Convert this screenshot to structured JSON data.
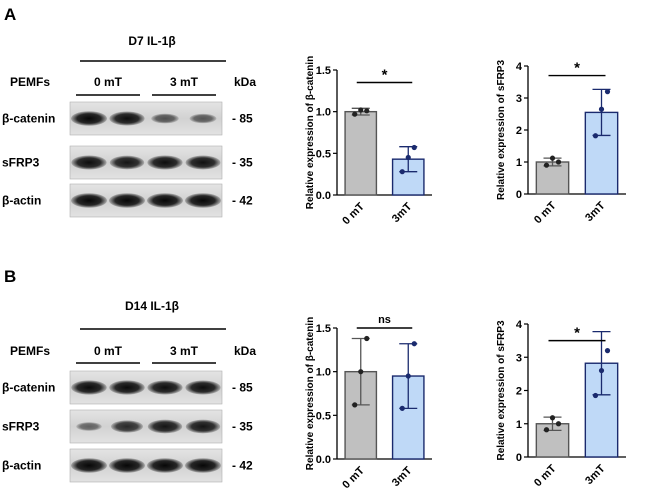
{
  "panels": [
    {
      "label": "A",
      "condition": "D7 IL-1β",
      "treatment_label": "PEMFs",
      "groups": [
        "0 mT",
        "3 mT"
      ],
      "kda_label": "kDa",
      "blots": [
        {
          "protein": "β-catenin",
          "kda": "- 85",
          "intensities": [
            0.95,
            0.9,
            0.42,
            0.38
          ]
        },
        {
          "protein": "sFRP3",
          "kda": "- 35",
          "intensities": [
            0.9,
            0.85,
            0.9,
            0.88
          ]
        },
        {
          "protein": "β-actin",
          "kda": "- 42",
          "intensities": [
            0.95,
            0.95,
            0.95,
            0.95
          ]
        }
      ]
    },
    {
      "label": "B",
      "condition": "D14 IL-1β",
      "treatment_label": "PEMFs",
      "groups": [
        "0 mT",
        "3 mT"
      ],
      "kda_label": "kDa",
      "blots": [
        {
          "protein": "β-catenin",
          "kda": "- 85",
          "intensities": [
            0.92,
            0.92,
            0.9,
            0.9
          ]
        },
        {
          "protein": "sFRP3",
          "kda": "- 35",
          "intensities": [
            0.3,
            0.7,
            0.85,
            0.85
          ]
        },
        {
          "protein": "β-actin",
          "kda": "- 42",
          "intensities": [
            0.95,
            0.95,
            0.95,
            0.95
          ]
        }
      ]
    }
  ],
  "chart_data": [
    {
      "type": "bar",
      "categories": [
        "0 mT",
        "3mT"
      ],
      "values": [
        1.0,
        0.43
      ],
      "errors": [
        0.04,
        0.15
      ],
      "points": [
        [
          0.97,
          1.02,
          1.01
        ],
        [
          0.28,
          0.45,
          0.57
        ]
      ],
      "colors": [
        "#c0c0c0",
        "#bfd9f7"
      ],
      "edge_colors": [
        "#555555",
        "#1a2a6e"
      ],
      "ylabel": "Relative expression of β-catenin",
      "ylim": [
        0,
        1.5
      ],
      "yticks": [
        "0.0",
        "0.5",
        "1.0",
        "1.5"
      ],
      "significance": "*"
    },
    {
      "type": "bar",
      "categories": [
        "0 mT",
        "3mT"
      ],
      "values": [
        1.0,
        2.55
      ],
      "errors": [
        0.12,
        0.72
      ],
      "points": [
        [
          0.9,
          1.12,
          1.0
        ],
        [
          1.82,
          2.65,
          3.2
        ]
      ],
      "colors": [
        "#c0c0c0",
        "#bfd9f7"
      ],
      "edge_colors": [
        "#555555",
        "#1a2a6e"
      ],
      "ylabel": "Relative expression of sFRP3",
      "ylim": [
        0,
        4
      ],
      "yticks": [
        "0",
        "1",
        "2",
        "3",
        "4"
      ],
      "significance": "*"
    },
    {
      "type": "bar",
      "categories": [
        "0 mT",
        "3mT"
      ],
      "values": [
        1.0,
        0.95
      ],
      "errors": [
        0.38,
        0.37
      ],
      "points": [
        [
          0.62,
          1.0,
          1.38
        ],
        [
          0.58,
          0.95,
          1.32
        ]
      ],
      "colors": [
        "#c0c0c0",
        "#bfd9f7"
      ],
      "edge_colors": [
        "#555555",
        "#1a2a6e"
      ],
      "ylabel": "Relative expression of β-catenin",
      "ylim": [
        0,
        1.5
      ],
      "yticks": [
        "0.0",
        "0.5",
        "1.0",
        "1.5"
      ],
      "significance": "ns"
    },
    {
      "type": "bar",
      "categories": [
        "0 mT",
        "3mT"
      ],
      "values": [
        1.0,
        2.82
      ],
      "errors": [
        0.2,
        0.95
      ],
      "points": [
        [
          0.82,
          1.18,
          1.0
        ],
        [
          1.85,
          2.6,
          3.2
        ]
      ],
      "colors": [
        "#c0c0c0",
        "#bfd9f7"
      ],
      "edge_colors": [
        "#555555",
        "#1a2a6e"
      ],
      "ylabel": "Relative expression of sFRP3",
      "ylim": [
        0,
        4
      ],
      "yticks": [
        "0",
        "1",
        "2",
        "3",
        "4"
      ],
      "significance": "*"
    }
  ]
}
